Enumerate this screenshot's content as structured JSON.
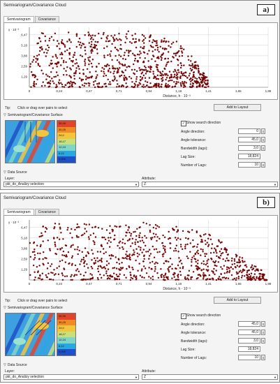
{
  "panels": [
    {
      "letter": "a)",
      "title": "Semivariogram/Covariance Cloud",
      "tabs": [
        "Semivariogram",
        "Covariance"
      ],
      "y_axis_exponent": "γ · 10⁻²",
      "x_axis_label": "Distance, h · 10⁻³",
      "chart_data": {
        "type": "scatter",
        "xlim": [
          0,
          1.88
        ],
        "ylim": [
          0,
          7.4
        ],
        "x_ticks": [
          "0",
          "0,24",
          "0,47",
          "0,71",
          "0,94",
          "1,18",
          "1,41",
          "1,65",
          "1,88"
        ],
        "y_ticks": [
          "1,29",
          "2,59",
          "3,88",
          "5,18",
          "6,47"
        ],
        "point_color": "#8b0000",
        "grid": true,
        "extent": {
          "max_distance": 1.41,
          "envelope": [
            [
              0,
              6.7
            ],
            [
              0.2,
              6.8
            ],
            [
              0.5,
              6.8
            ],
            [
              0.8,
              7.0
            ],
            [
              1.0,
              6.3
            ],
            [
              1.15,
              5.8
            ],
            [
              1.3,
              3.5
            ],
            [
              1.41,
              1.0
            ]
          ]
        }
      },
      "tip_label": "Tip:",
      "tip_text": "Click or drag over pairs to select",
      "add_to_layout": "Add to Layout",
      "surface_section": "Semivariogram/Covariance Surface",
      "legend_values": [
        "36,96",
        "30,25",
        "24,0",
        "18,17",
        "12,24",
        "6,12",
        "0,000"
      ],
      "show_search_direction": "Show search direction",
      "params": [
        {
          "label": "Angle direction:",
          "value": "0"
        },
        {
          "label": "Angle tolerance:",
          "value": "45,0"
        },
        {
          "label": "Bandwidth (lags):",
          "value": "3,0"
        },
        {
          "label": "Lag Size:",
          "value": "18,824"
        },
        {
          "label": "Number of Lags:",
          "value": "10"
        }
      ],
      "data_source": "Data Source",
      "layer_label": "Layer:",
      "layer_value": "pkt_do_Analizy selection",
      "attribute_label": "Attribute:",
      "attribute_value": "Z"
    },
    {
      "letter": "b)",
      "title": "Semivariogram/Covariance Cloud",
      "tabs": [
        "Semivariogram",
        "Covariance"
      ],
      "y_axis_exponent": "γ · 10⁻²",
      "x_axis_label": "Distance, h · 10⁻³",
      "chart_data": {
        "type": "scatter",
        "xlim": [
          0,
          1.88
        ],
        "ylim": [
          0,
          7.4
        ],
        "x_ticks": [
          "0",
          "0,24",
          "0,47",
          "0,71",
          "0,94",
          "1,18",
          "1,41",
          "1,65",
          "1,88"
        ],
        "y_ticks": [
          "1,29",
          "2,59",
          "3,88",
          "5,18",
          "6,47"
        ],
        "point_color": "#8b0000",
        "grid": true,
        "extent": {
          "max_distance": 1.88,
          "envelope": [
            [
              0,
              6.9
            ],
            [
              0.3,
              7.0
            ],
            [
              0.6,
              6.8
            ],
            [
              0.9,
              7.1
            ],
            [
              1.2,
              6.5
            ],
            [
              1.45,
              5.5
            ],
            [
              1.65,
              3.0
            ],
            [
              1.85,
              1.0
            ]
          ]
        }
      },
      "tip_label": "Tip:",
      "tip_text": "Click or drag over pairs to select",
      "add_to_layout": "Add to Layout",
      "surface_section": "Semivariogram/Covariance Surface",
      "legend_values": [
        "36,96",
        "30,25",
        "24,0",
        "18,17",
        "12,24",
        "6,12",
        "0,000"
      ],
      "show_search_direction": "Show search direction",
      "params": [
        {
          "label": "Angle direction:",
          "value": "45,0"
        },
        {
          "label": "Angle tolerance:",
          "value": "45,0"
        },
        {
          "label": "Bandwidth (lags):",
          "value": "3,0"
        },
        {
          "label": "Lag Size:",
          "value": "18,824"
        },
        {
          "label": "Number of Lags:",
          "value": "10"
        }
      ],
      "data_source": "Data Source",
      "layer_label": "Layer:",
      "layer_value": "pkt_do_Analizy selection",
      "attribute_label": "Attribute:",
      "attribute_value": "Z"
    }
  ]
}
